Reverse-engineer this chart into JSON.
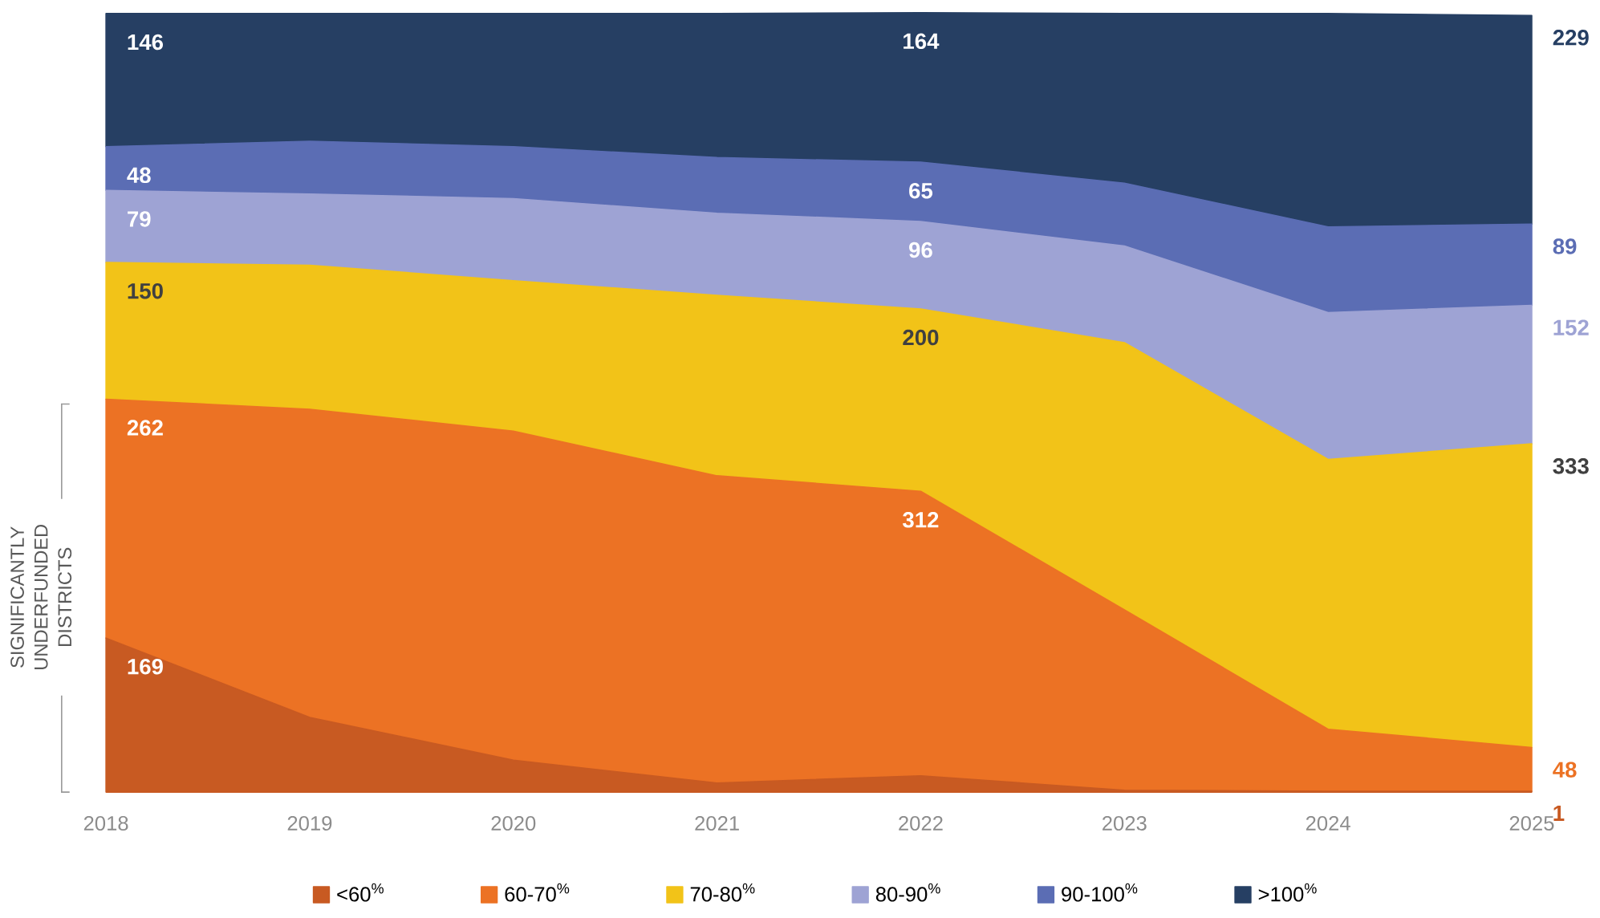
{
  "chart_data": {
    "type": "area",
    "stacked": true,
    "categories": [
      "2018",
      "2019",
      "2020",
      "2021",
      "2022",
      "2023",
      "2024",
      "2025"
    ],
    "series": [
      {
        "name": "<60$^{%}$",
        "color": "#c85a22",
        "values": [
          169,
          82,
          35,
          10,
          18,
          2,
          1,
          1
        ],
        "value_labels": [
          "169",
          null,
          null,
          null,
          null,
          null,
          null,
          "1"
        ]
      },
      {
        "name": "60-70$^{%}$",
        "color": "#ec7224",
        "values": [
          262,
          338,
          361,
          337,
          312,
          198,
          68,
          48
        ],
        "value_labels": [
          "262",
          null,
          null,
          null,
          "312",
          null,
          null,
          "48"
        ]
      },
      {
        "name": "70-80$^{%}$",
        "color": "#f2c318",
        "values": [
          150,
          158,
          165,
          198,
          200,
          293,
          296,
          333
        ],
        "value_labels": [
          "150",
          null,
          null,
          null,
          "200",
          null,
          null,
          "333"
        ]
      },
      {
        "name": "80-90$^{%}$",
        "color": "#9ea3d4",
        "values": [
          79,
          78,
          90,
          90,
          96,
          106,
          161,
          152
        ],
        "value_labels": [
          "79",
          null,
          null,
          null,
          "96",
          null,
          null,
          "152"
        ]
      },
      {
        "name": "90-100$^{%}$",
        "color": "#5b6db4",
        "values": [
          48,
          58,
          57,
          61,
          65,
          69,
          94,
          89
        ],
        "value_labels": [
          "48",
          null,
          null,
          null,
          "65",
          null,
          null,
          "89"
        ]
      },
      {
        "name": ">100$^{%}$",
        "color": "#263f63",
        "values": [
          146,
          140,
          146,
          158,
          164,
          186,
          234,
          229
        ],
        "value_labels": [
          "146",
          null,
          null,
          null,
          "164",
          null,
          null,
          "229"
        ]
      }
    ],
    "annotations": [
      "SIGNIFICANTLY UNDERFUNDED DISTRICTS"
    ],
    "legend": "bottom"
  }
}
